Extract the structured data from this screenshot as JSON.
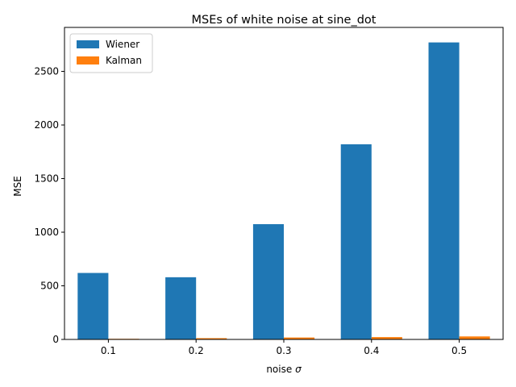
{
  "chart_data": {
    "type": "bar",
    "title": "MSEs of white noise at sine_dot",
    "xlabel": "noise",
    "xlabel_symbol": "σ",
    "ylabel": "MSE",
    "categories": [
      "0.1",
      "0.2",
      "0.3",
      "0.4",
      "0.5"
    ],
    "series": [
      {
        "name": "Wiener",
        "color": "#1f77b4",
        "values": [
          620,
          580,
          1075,
          1820,
          2770
        ]
      },
      {
        "name": "Kalman",
        "color": "#ff7f0e",
        "values": [
          6,
          12,
          18,
          22,
          28
        ]
      }
    ],
    "ylim": [
      0,
      2910
    ],
    "yticks": [
      0,
      500,
      1000,
      1500,
      2000,
      2500
    ],
    "legend": "top-left",
    "grid": false
  }
}
